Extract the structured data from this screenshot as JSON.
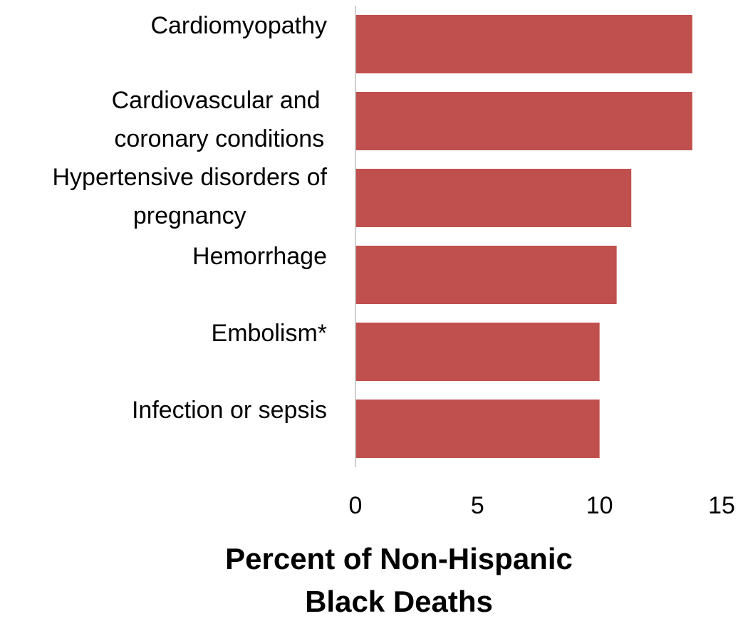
{
  "chart_data": {
    "type": "bar",
    "orientation": "horizontal",
    "x_axis_label": "Percent of Non-Hispanic\nBlack Deaths",
    "categories": [
      "Cardiomyopathy",
      "Cardiovascular and \ncoronary conditions",
      "Hypertensive disorders of\npregnancy",
      "Hemorrhage",
      "Embolism*",
      "Infection or sepsis"
    ],
    "values": [
      13.8,
      13.8,
      11.3,
      10.7,
      10.0,
      10.0
    ],
    "color": "#c0504d",
    "xlim": [
      0,
      15
    ],
    "xticks": [
      0,
      5,
      10,
      15
    ],
    "grid": false
  }
}
